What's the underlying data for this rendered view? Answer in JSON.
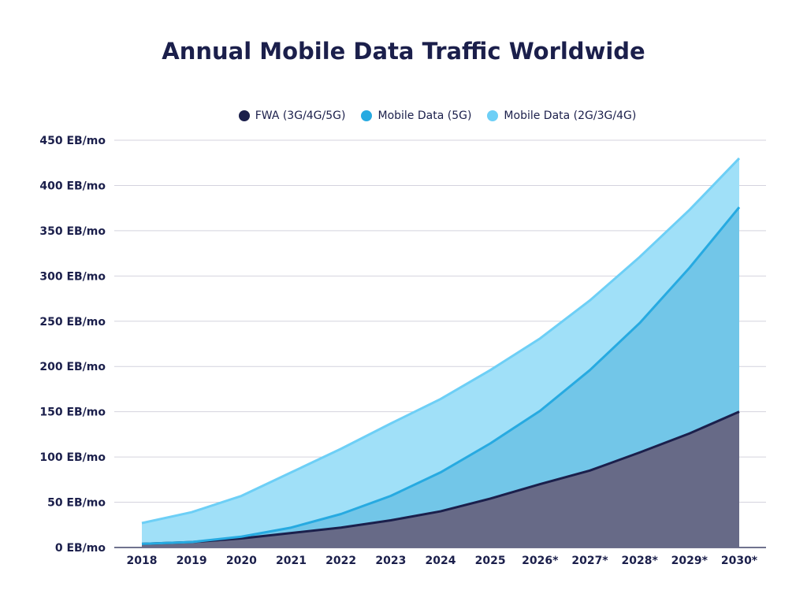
{
  "chart_data": {
    "type": "area",
    "stacked": true,
    "title": "Annual Mobile Data Traffic Worldwide",
    "xlabel": "",
    "ylabel": "",
    "categories": [
      "2018",
      "2019",
      "2020",
      "2021",
      "2022",
      "2023",
      "2024",
      "2025",
      "2026*",
      "2027*",
      "2028*",
      "2029*",
      "2030*"
    ],
    "ylim": [
      0,
      450
    ],
    "yticks": [
      "0 EB/mo",
      "50 EB/mo",
      "100 EB/mo",
      "150 EB/mo",
      "200 EB/mo",
      "250 EB/mo",
      "300 EB/mo",
      "350 EB/mo",
      "400 EB/mo",
      "450 EB/mo"
    ],
    "ytick_values": [
      0,
      50,
      100,
      150,
      200,
      250,
      300,
      350,
      400,
      450
    ],
    "grid": true,
    "legend_position": "top",
    "series": [
      {
        "name": "FWA (3G/4G/5G)",
        "line_color": "#1b1f4b",
        "fill_color": "#676a87",
        "values": [
          4,
          6,
          10,
          16,
          22,
          30,
          40,
          54,
          70,
          85,
          105,
          126,
          150
        ]
      },
      {
        "name": "Mobile Data (5G)",
        "line_color": "#27aae1",
        "fill_color": "#72c6e8",
        "values": [
          0,
          0,
          2,
          6,
          15,
          27,
          43,
          61,
          81,
          111,
          143,
          183,
          226
        ]
      },
      {
        "name": "Mobile Data (2G/3G/4G)",
        "line_color": "#6dcff6",
        "fill_color": "#a0e0f8",
        "values": [
          23,
          33,
          45,
          61,
          72,
          80,
          81,
          81,
          80,
          77,
          73,
          64,
          54
        ]
      }
    ]
  }
}
